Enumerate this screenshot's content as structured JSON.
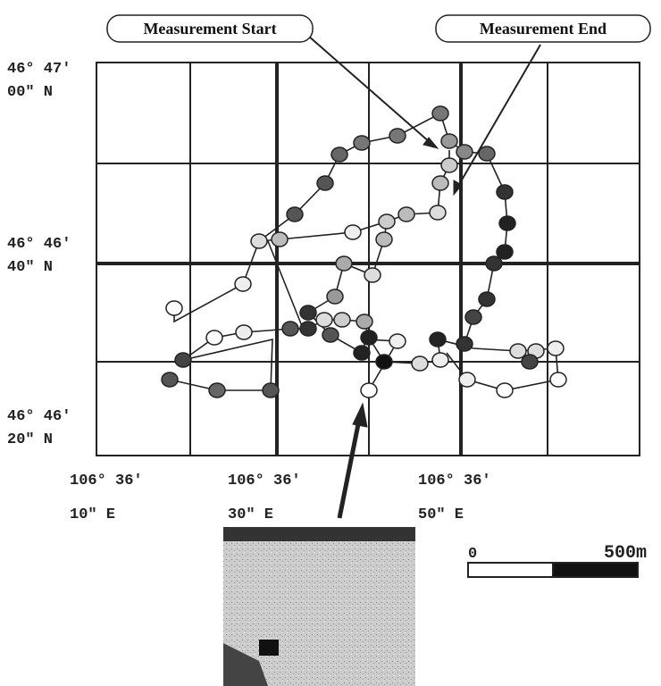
{
  "callouts": {
    "start": "Measurement Start",
    "end": "Measurement End"
  },
  "lat_labels": [
    [
      "46° 47′",
      "00″ N"
    ],
    [
      "46° 46′",
      "40″ N"
    ],
    [
      "46° 46′",
      "20″ N"
    ]
  ],
  "lon_labels": [
    [
      "106° 36′",
      "10″ E"
    ],
    [
      "106° 36′",
      "30″ E"
    ],
    [
      "106° 36′",
      "50″ E"
    ]
  ],
  "scale": {
    "start": "0",
    "end": "500m"
  }
}
